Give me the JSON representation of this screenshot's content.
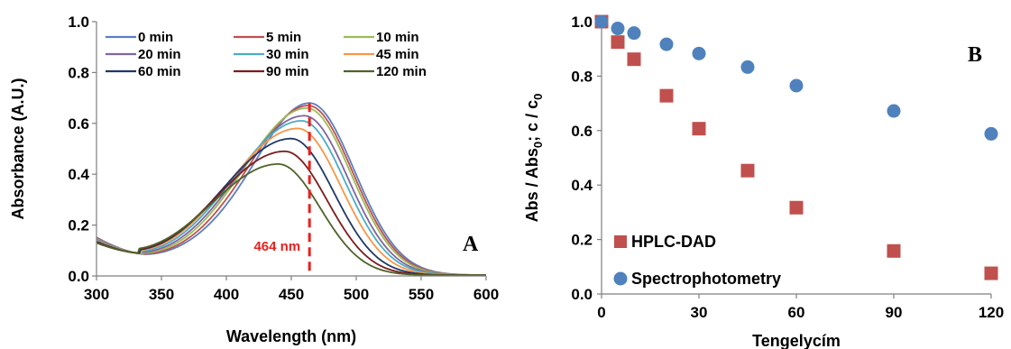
{
  "chart_data": [
    {
      "panel": "A",
      "type": "line",
      "xlabel": "Wavelength (nm)",
      "ylabel": "Absorbance (A.U.)",
      "xlim": [
        300,
        600
      ],
      "ylim": [
        0,
        1.0
      ],
      "xticks": [
        "300",
        "350",
        "400",
        "450",
        "500",
        "550",
        "600"
      ],
      "yticks": [
        "0.0",
        "0.2",
        "0.4",
        "0.6",
        "0.8",
        "1.0"
      ],
      "annotation": {
        "label": "464 nm",
        "x": 464,
        "color": "#e8201d"
      },
      "legend_position": "top",
      "series": [
        {
          "name": "0 min",
          "color": "#5b7fc2",
          "peak_x": 464,
          "peak_y": 0.68
        },
        {
          "name": "5 min",
          "color": "#c0504d",
          "peak_x": 463,
          "peak_y": 0.67
        },
        {
          "name": "10 min",
          "color": "#9bbb59",
          "peak_x": 462,
          "peak_y": 0.66
        },
        {
          "name": "20 min",
          "color": "#8064a2",
          "peak_x": 460,
          "peak_y": 0.63
        },
        {
          "name": "30 min",
          "color": "#4bacc6",
          "peak_x": 458,
          "peak_y": 0.61
        },
        {
          "name": "45 min",
          "color": "#f79646",
          "peak_x": 455,
          "peak_y": 0.58
        },
        {
          "name": "60 min",
          "color": "#1f3864",
          "peak_x": 450,
          "peak_y": 0.54
        },
        {
          "name": "90 min",
          "color": "#7b1c1c",
          "peak_x": 445,
          "peak_y": 0.49
        },
        {
          "name": "120 min",
          "color": "#4f6228",
          "peak_x": 440,
          "peak_y": 0.44
        }
      ]
    },
    {
      "panel": "B",
      "type": "scatter",
      "xlabel": "Tengelycím",
      "ylabel_parts": [
        "Abs / Abs",
        "0",
        ";    c / c",
        "0"
      ],
      "xlim": [
        0,
        120
      ],
      "ylim": [
        0,
        1.0
      ],
      "xticks": [
        "0",
        "30",
        "60",
        "90",
        "120"
      ],
      "yticks": [
        "0.0",
        "0.2",
        "0.4",
        "0.6",
        "0.8",
        "1.0"
      ],
      "legend_position": "bottom-left",
      "series": [
        {
          "name": "HPLC-DAD",
          "color": "#c0504d",
          "marker": "square",
          "x": [
            0,
            5,
            10,
            20,
            30,
            45,
            60,
            90,
            120
          ],
          "y": [
            1.0,
            0.925,
            0.862,
            0.728,
            0.607,
            0.453,
            0.317,
            0.158,
            0.076
          ]
        },
        {
          "name": "Spectrophotometry",
          "color": "#4f81bd",
          "marker": "circle",
          "x": [
            0,
            5,
            10,
            20,
            30,
            45,
            60,
            90,
            120
          ],
          "y": [
            1.0,
            0.975,
            0.958,
            0.917,
            0.883,
            0.833,
            0.765,
            0.672,
            0.588
          ]
        }
      ]
    }
  ]
}
